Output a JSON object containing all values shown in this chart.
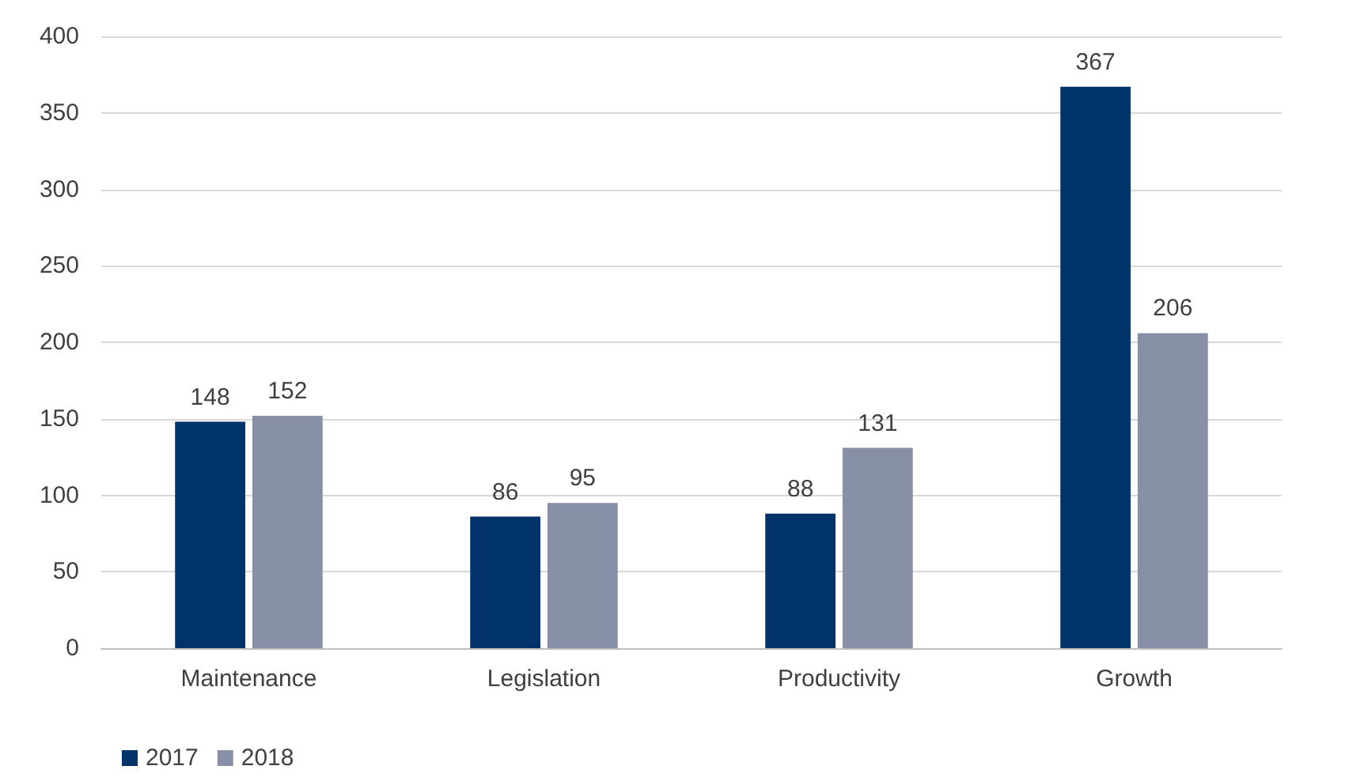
{
  "chart_data": {
    "type": "bar",
    "categories": [
      "Maintenance",
      "Legislation",
      "Productivity",
      "Growth"
    ],
    "series": [
      {
        "name": "2017",
        "color": "#00336a",
        "values": [
          148,
          86,
          88,
          367
        ]
      },
      {
        "name": "2018",
        "color": "#8890a8",
        "values": [
          152,
          95,
          131,
          206
        ]
      }
    ],
    "ylim": [
      0,
      400
    ],
    "yticks": [
      0,
      50,
      100,
      150,
      200,
      250,
      300,
      350,
      400
    ],
    "grid": "y",
    "legend": "bottom left",
    "data_labels": true
  }
}
